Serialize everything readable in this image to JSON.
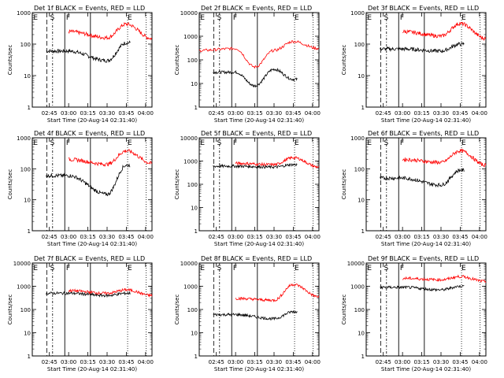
{
  "common": {
    "xlabel": "Start Time (20-Aug-14 02:31:40)",
    "ylabel": "Counts/sec",
    "xticks": [
      "02:45",
      "03:00",
      "03:15",
      "03:30",
      "03:45",
      "04:00"
    ],
    "markers": [
      "E",
      "S",
      "F",
      "E"
    ],
    "colors": {
      "events": "#000000",
      "lld": "#ff0000"
    }
  },
  "chart_data": [
    {
      "type": "line",
      "title": "Det 1f BLACK = Events, RED = LLD",
      "ylim": [
        1,
        1000
      ],
      "yticks": [
        "1",
        "10",
        "100",
        "1000"
      ],
      "x": [
        "02:31:40",
        "03:00",
        "03:30",
        "03:45",
        "04:05"
      ],
      "series": [
        {
          "name": "Events",
          "values": [
            null,
            60,
            30,
            110,
            null
          ]
        },
        {
          "name": "LLD",
          "values": [
            null,
            250,
            160,
            430,
            150
          ]
        }
      ]
    },
    {
      "type": "line",
      "title": "Det 2f BLACK = Events, RED = LLD",
      "ylim": [
        1,
        10000
      ],
      "yticks": [
        "1",
        "10",
        "100",
        "1000",
        "10000"
      ],
      "x": [
        "02:31:40",
        "03:00",
        "03:15",
        "03:30",
        "03:45",
        "04:05"
      ],
      "series": [
        {
          "name": "Events",
          "values": [
            null,
            30,
            8,
            40,
            15,
            null
          ]
        },
        {
          "name": "LLD",
          "values": [
            250,
            300,
            50,
            250,
            600,
            300
          ]
        }
      ]
    },
    {
      "type": "line",
      "title": "Det 3f BLACK = Events, RED = LLD",
      "ylim": [
        1,
        1000
      ],
      "yticks": [
        "1",
        "10",
        "100",
        "1000"
      ],
      "x": [
        "02:31:40",
        "03:00",
        "03:30",
        "03:45",
        "04:05"
      ],
      "series": [
        {
          "name": "Events",
          "values": [
            null,
            70,
            60,
            100,
            null
          ]
        },
        {
          "name": "LLD",
          "values": [
            null,
            250,
            180,
            450,
            150
          ]
        }
      ]
    },
    {
      "type": "line",
      "title": "Det 4f BLACK = Events, RED = LLD",
      "ylim": [
        1,
        1000
      ],
      "yticks": [
        "1",
        "10",
        "100",
        "1000"
      ],
      "x": [
        "02:31:40",
        "03:00",
        "03:30",
        "03:45",
        "04:05"
      ],
      "series": [
        {
          "name": "Events",
          "values": [
            null,
            60,
            15,
            130,
            null
          ]
        },
        {
          "name": "LLD",
          "values": [
            null,
            200,
            140,
            380,
            150
          ]
        }
      ]
    },
    {
      "type": "line",
      "title": "Det 5f BLACK = Events, RED = LLD",
      "ylim": [
        1,
        10000
      ],
      "yticks": [
        "1",
        "10",
        "100",
        "1000",
        "10000"
      ],
      "x": [
        "02:31:40",
        "03:00",
        "03:30",
        "03:45",
        "04:05"
      ],
      "series": [
        {
          "name": "Events",
          "values": [
            null,
            600,
            550,
            700,
            null
          ]
        },
        {
          "name": "LLD",
          "values": [
            null,
            800,
            700,
            1400,
            550
          ]
        }
      ]
    },
    {
      "type": "line",
      "title": "Det 6f BLACK = Events, RED = LLD",
      "ylim": [
        1,
        1000
      ],
      "yticks": [
        "1",
        "10",
        "100",
        "1000"
      ],
      "x": [
        "02:31:40",
        "03:00",
        "03:30",
        "03:45",
        "04:05"
      ],
      "series": [
        {
          "name": "Events",
          "values": [
            null,
            50,
            30,
            90,
            null
          ]
        },
        {
          "name": "LLD",
          "values": [
            null,
            200,
            160,
            380,
            130
          ]
        }
      ]
    },
    {
      "type": "line",
      "title": "Det 7f BLACK = Events, RED = LLD",
      "ylim": [
        1,
        10000
      ],
      "yticks": [
        "1",
        "10",
        "100",
        "1000",
        "10000"
      ],
      "x": [
        "02:31:40",
        "03:00",
        "03:30",
        "03:45",
        "04:05"
      ],
      "series": [
        {
          "name": "Events",
          "values": [
            null,
            500,
            400,
            500,
            null
          ]
        },
        {
          "name": "LLD",
          "values": [
            null,
            650,
            500,
            700,
            400
          ]
        }
      ]
    },
    {
      "type": "line",
      "title": "Det 8f BLACK = Events, RED = LLD",
      "ylim": [
        1,
        10000
      ],
      "yticks": [
        "1",
        "10",
        "100",
        "1000",
        "10000"
      ],
      "x": [
        "02:31:40",
        "03:00",
        "03:30",
        "03:45",
        "04:05"
      ],
      "series": [
        {
          "name": "Events",
          "values": [
            null,
            60,
            40,
            80,
            null
          ]
        },
        {
          "name": "LLD",
          "values": [
            null,
            300,
            250,
            1200,
            350
          ]
        }
      ]
    },
    {
      "type": "line",
      "title": "Det 9f BLACK = Events, RED = LLD",
      "ylim": [
        1,
        10000
      ],
      "yticks": [
        "1",
        "10",
        "100",
        "1000",
        "10000"
      ],
      "x": [
        "02:31:40",
        "03:00",
        "03:30",
        "03:45",
        "04:05"
      ],
      "series": [
        {
          "name": "Events",
          "values": [
            null,
            900,
            700,
            1000,
            null
          ]
        },
        {
          "name": "LLD",
          "values": [
            null,
            2200,
            1900,
            2600,
            1600
          ]
        }
      ]
    }
  ]
}
